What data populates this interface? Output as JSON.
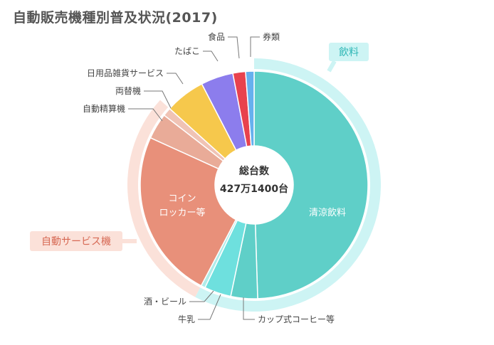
{
  "chart_data": {
    "type": "pie",
    "title": "自動販売機種別普及状況(2017)",
    "center_label": "総台数",
    "center_value": "427万1400台",
    "slices": [
      {
        "name": "清涼飲料",
        "value": 49.5,
        "color": "#5fcfc8"
      },
      {
        "name": "カップ式コーヒー等",
        "value": 3.8,
        "color": "#5fcfc8"
      },
      {
        "name": "牛乳",
        "value": 3.8,
        "color": "#6ee0de"
      },
      {
        "name": "酒・ビール",
        "value": 0.6,
        "color": "#b0ece9"
      },
      {
        "name": "コインロッカー等",
        "value": 24.1,
        "color": "#e8907a"
      },
      {
        "name": "自動精算機",
        "value": 3.7,
        "color": "#e9ab98"
      },
      {
        "name": "両替機",
        "value": 1.2,
        "color": "#f0c3b5"
      },
      {
        "name": "日用品雑貨サービス",
        "value": 5.7,
        "color": "#f6c84c"
      },
      {
        "name": "たばこ",
        "value": 4.6,
        "color": "#8c7ded"
      },
      {
        "name": "食品",
        "value": 1.8,
        "color": "#e8424e"
      },
      {
        "name": "券類",
        "value": 1.2,
        "color": "#66b0ee"
      }
    ],
    "groups": [
      {
        "name": "飲料",
        "color": "#cdf4f4",
        "text_color": "#2fb7b6",
        "members": [
          "清涼飲料",
          "カップ式コーヒー等",
          "牛乳",
          "酒・ビール"
        ]
      },
      {
        "name": "自動サービス機",
        "color": "#fbe1d9",
        "text_color": "#d76a55",
        "members": [
          "コインロッカー等",
          "自動精算機",
          "両替機"
        ]
      }
    ],
    "inside_labels": {
      "清涼飲料": "清涼飲料",
      "コインロッカー等": "コイン|ロッカー等"
    }
  }
}
